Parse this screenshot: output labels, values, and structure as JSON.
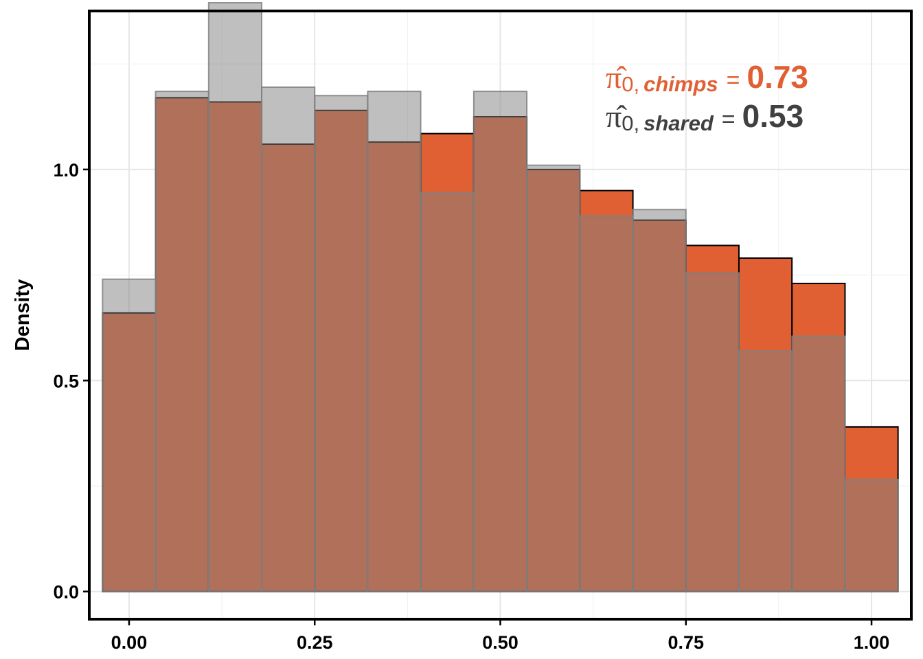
{
  "chart_data": {
    "type": "bar",
    "title": "",
    "xlabel": "",
    "ylabel": "Density",
    "xlim": [
      -0.0536,
      1.0536
    ],
    "ylim": [
      -0.0655,
      1.3755
    ],
    "bin_width": 0.0714,
    "bin_centers": [
      0.0,
      0.0714,
      0.1429,
      0.2143,
      0.2857,
      0.3571,
      0.4286,
      0.5,
      0.5714,
      0.6429,
      0.7143,
      0.7857,
      0.8571,
      0.9286,
      1.0
    ],
    "x_ticks": [
      {
        "value": 0.0,
        "label": "0.00"
      },
      {
        "value": 0.25,
        "label": "0.25"
      },
      {
        "value": 0.5,
        "label": "0.50"
      },
      {
        "value": 0.75,
        "label": "0.75"
      },
      {
        "value": 1.0,
        "label": "1.00"
      }
    ],
    "y_ticks": [
      {
        "value": 0.0,
        "label": "0.0"
      },
      {
        "value": 0.5,
        "label": "0.5"
      },
      {
        "value": 1.0,
        "label": "1.0"
      }
    ],
    "grid": true,
    "colors": {
      "chimps": "#E06034",
      "shared": "#808080",
      "shared_label": "#404040",
      "overlap": "#B8A299",
      "frame": "#000000"
    },
    "series": [
      {
        "values": [
          0.66,
          1.17,
          1.16,
          1.06,
          1.14,
          1.065,
          1.085,
          1.125,
          1.0,
          0.95,
          0.88,
          0.82,
          0.79,
          0.73,
          0.39
        ]
      },
      {
        "values": [
          0.74,
          1.185,
          1.395,
          1.195,
          1.175,
          1.185,
          0.945,
          1.185,
          1.01,
          0.89,
          0.905,
          0.755,
          0.57,
          0.605,
          0.265
        ]
      }
    ],
    "annotations": [
      {
        "symbol": "π̂",
        "subscript": "0, chimps",
        "operator": "=",
        "value": "0.73",
        "color": "#E06034"
      },
      {
        "symbol": "π̂",
        "subscript": "0, shared",
        "operator": "=",
        "value": "0.53",
        "color": "#404040"
      }
    ]
  }
}
